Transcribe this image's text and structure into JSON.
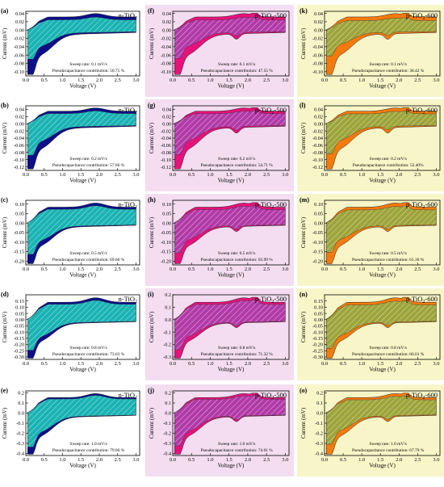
{
  "figure": {
    "x_label": "Voltage (V)",
    "y_label": "Current (mV)",
    "x_ticks": [
      "0.0",
      "0.5",
      "1.0",
      "1.5",
      "2.0",
      "2.5",
      "3.0"
    ],
    "columns": [
      {
        "title": "n-TiO2",
        "background": "#ffffff",
        "fill": "#0b0f8a",
        "pseudo_fill": "#1ab3b3"
      },
      {
        "title": "p-TiO2-500",
        "background": "#f4ddf1",
        "fill": "#e6127a",
        "pseudo_fill": "#b23aa8"
      },
      {
        "title": "p-TiO2-600",
        "background": "#f8f6c8",
        "fill": "#f57a0c",
        "pseudo_fill": "#9da43a"
      }
    ]
  },
  "chart_data": [
    {
      "type": "area",
      "panel": "(a)",
      "title": "n-TiO2",
      "xlabel": "Voltage (V)",
      "ylabel": "Current (mV)",
      "xlim": [
        0,
        3.1
      ],
      "ylim": [
        -0.11,
        0.045
      ],
      "y_ticks": [
        "-0.10",
        "-0.08",
        "-0.06",
        "-0.04",
        "-0.02",
        "0.00",
        "0.02",
        "0.04"
      ],
      "sweep_rate": "Sweep rate: 0.1 mV/s",
      "pseudocapacitance": "Pseudocapacitance contribution: 50.75 %",
      "pseudo_fraction": 0.5075
    },
    {
      "type": "area",
      "panel": "(f)",
      "title": "p-TiO2-500",
      "xlabel": "Voltage (V)",
      "ylabel": "Current (mV)",
      "xlim": [
        0,
        3.1
      ],
      "ylim": [
        -0.11,
        0.045
      ],
      "y_ticks": [
        "-0.10",
        "-0.08",
        "-0.06",
        "-0.04",
        "-0.02",
        "0.00",
        "0.02",
        "0.04"
      ],
      "sweep_rate": "Sweep rate: 0.1 mV/s",
      "pseudocapacitance": "Pseudocapacitance contribution: 47.55 %",
      "pseudo_fraction": 0.4755
    },
    {
      "type": "area",
      "panel": "(k)",
      "title": "p-TiO2-600",
      "xlabel": "Voltage (V)",
      "ylabel": "Current (mV)",
      "xlim": [
        0,
        3.1
      ],
      "ylim": [
        -0.11,
        0.045
      ],
      "y_ticks": [
        "-0.10",
        "-0.08",
        "-0.06",
        "-0.04",
        "-0.02",
        "0.00",
        "0.02",
        "0.04"
      ],
      "sweep_rate": "Sweep rate: 0.1 mV/s",
      "pseudocapacitance": "Pseudocapacitance contribution: 38.42 %",
      "pseudo_fraction": 0.3842
    },
    {
      "type": "area",
      "panel": "(b)",
      "title": "n-TiO2",
      "xlabel": "Voltage (V)",
      "ylabel": "Current (mV)",
      "xlim": [
        0,
        3.1
      ],
      "ylim": [
        -0.13,
        0.05
      ],
      "y_ticks": [
        "-0.12",
        "-0.10",
        "-0.08",
        "-0.06",
        "-0.04",
        "-0.02",
        "0.00",
        "0.02",
        "0.04"
      ],
      "sweep_rate": "Sweep rate: 0.2 mV/s",
      "pseudocapacitance": "Pseudocapacitance contribution: 57.66 %",
      "pseudo_fraction": 0.5766
    },
    {
      "type": "area",
      "panel": "(g)",
      "title": "p-TiO2-500",
      "xlabel": "Voltage (V)",
      "ylabel": "Current (mV)",
      "xlim": [
        0,
        3.1
      ],
      "ylim": [
        -0.13,
        0.05
      ],
      "y_ticks": [
        "-0.12",
        "-0.10",
        "-0.08",
        "-0.06",
        "-0.04",
        "-0.02",
        "0.00",
        "0.02",
        "0.04"
      ],
      "sweep_rate": "Sweep rate: 0.2 mV/s",
      "pseudocapacitance": "Pseudocapacitance contribution: 54.71 %",
      "pseudo_fraction": 0.5471
    },
    {
      "type": "area",
      "panel": "(l)",
      "title": "p-TiO2-600",
      "xlabel": "Voltage (V)",
      "ylabel": "Current (mV)",
      "xlim": [
        0,
        3.1
      ],
      "ylim": [
        -0.13,
        0.05
      ],
      "y_ticks": [
        "-0.12",
        "-0.10",
        "-0.08",
        "-0.06",
        "-0.04",
        "-0.02",
        "0.00",
        "0.02",
        "0.04"
      ],
      "sweep_rate": "Sweep rate: 0.2 mV/s",
      "pseudocapacitance": "Pseudocapacitance contribution: 52.40%",
      "pseudo_fraction": 0.524
    },
    {
      "type": "area",
      "panel": "(c)",
      "title": "n-TiO2",
      "xlabel": "Voltage (V)",
      "ylabel": "Current (mV)",
      "xlim": [
        0,
        3.1
      ],
      "ylim": [
        -0.22,
        0.12
      ],
      "y_ticks": [
        "-0.20",
        "-0.15",
        "-0.10",
        "-0.05",
        "0.00",
        "0.05",
        "0.10"
      ],
      "sweep_rate": "Sweep rate: 0.5 mV/s",
      "pseudocapacitance": "Pseudocapacitance contribution: 69.66 %",
      "pseudo_fraction": 0.6966
    },
    {
      "type": "area",
      "panel": "(h)",
      "title": "p-TiO2-500",
      "xlabel": "Voltage (V)",
      "ylabel": "Current (mV)",
      "xlim": [
        0,
        3.1
      ],
      "ylim": [
        -0.22,
        0.12
      ],
      "y_ticks": [
        "-0.20",
        "-0.15",
        "-0.10",
        "-0.05",
        "0.00",
        "0.05",
        "0.10"
      ],
      "sweep_rate": "Sweep rate: 0.5 mV/s",
      "pseudocapacitance": "Pseudocapacitance contribution: 63.99 %",
      "pseudo_fraction": 0.6399
    },
    {
      "type": "area",
      "panel": "(m)",
      "title": "p-TiO2-600",
      "xlabel": "Voltage (V)",
      "ylabel": "Current (mV)",
      "xlim": [
        0,
        3.1
      ],
      "ylim": [
        -0.22,
        0.12
      ],
      "y_ticks": [
        "-0.20",
        "-0.15",
        "-0.10",
        "-0.05",
        "0.00",
        "0.05",
        "0.10"
      ],
      "sweep_rate": "Sweep rate: 0.5 mV/s",
      "pseudocapacitance": "Pseudocapacitance contribution: 61.30 %",
      "pseudo_fraction": 0.613
    },
    {
      "type": "area",
      "panel": "(d)",
      "title": "n-TiO2",
      "xlabel": "Voltage (V)",
      "ylabel": "Current (mV)",
      "xlim": [
        0,
        3.1
      ],
      "ylim": [
        -0.32,
        0.2
      ],
      "y_ticks": [
        "-0.30",
        "-0.25",
        "-0.20",
        "-0.15",
        "-0.10",
        "-0.05",
        "0.00",
        "0.05",
        "0.10",
        "0.15"
      ],
      "sweep_rate": "Sweep rate: 0.8 mV/s",
      "pseudocapacitance": "Pseudocapacitance contribution: 73.63 %",
      "pseudo_fraction": 0.7363
    },
    {
      "type": "area",
      "panel": "(i)",
      "title": "p-TiO2-500",
      "xlabel": "Voltage (V)",
      "ylabel": "Current (mV)",
      "xlim": [
        0,
        3.1
      ],
      "ylim": [
        -0.32,
        0.2
      ],
      "y_ticks": [
        "-0.3",
        "-0.2",
        "-0.1",
        "0.0",
        "0.1",
        "0.2"
      ],
      "sweep_rate": "Sweep rate: 0.8 mV/s",
      "pseudocapacitance": "Pseudocapacitance contribution: 71.32 %",
      "pseudo_fraction": 0.7132
    },
    {
      "type": "area",
      "panel": "(n)",
      "title": "p-TiO2-600",
      "xlabel": "Voltage (V)",
      "ylabel": "Current (mV)",
      "xlim": [
        0,
        3.1
      ],
      "ylim": [
        -0.32,
        0.2
      ],
      "y_ticks": [
        "-0.30",
        "-0.25",
        "-0.20",
        "-0.15",
        "-0.10",
        "-0.05",
        "0.00",
        "0.05",
        "0.10",
        "0.15"
      ],
      "sweep_rate": "Sweep rate: 0.8 mV/s",
      "pseudocapacitance": "Pseudocapacitance contribution: 66.01 %",
      "pseudo_fraction": 0.6601
    },
    {
      "type": "area",
      "panel": "(e)",
      "title": "n-TiO2",
      "xlabel": "Voltage (V)",
      "ylabel": "Current (mV)",
      "xlim": [
        0,
        3.1
      ],
      "ylim": [
        -0.42,
        0.22
      ],
      "y_ticks": [
        "-0.4",
        "-0.3",
        "-0.2",
        "-0.1",
        "0.0",
        "0.1",
        "0.2"
      ],
      "sweep_rate": "Sweep rate: 1.0 mV/s",
      "pseudocapacitance": "Pseudocapacitance contribution: 79.06 %",
      "pseudo_fraction": 0.7906
    },
    {
      "type": "area",
      "panel": "(j)",
      "title": "p-TiO2-500",
      "xlabel": "Voltage (V)",
      "ylabel": "Current (mV)",
      "xlim": [
        0,
        3.1
      ],
      "ylim": [
        -0.42,
        0.22
      ],
      "y_ticks": [
        "-0.4",
        "-0.3",
        "-0.2",
        "-0.1",
        "0.0",
        "0.1",
        "0.2"
      ],
      "sweep_rate": "Sweep rate: 1.0 mV/s",
      "pseudocapacitance": "Pseudocapacitance contribution: 74.01 %",
      "pseudo_fraction": 0.7401
    },
    {
      "type": "area",
      "panel": "(o)",
      "title": "p-TiO2-600",
      "xlabel": "Voltage (V)",
      "ylabel": "Current (mV)",
      "xlim": [
        0,
        3.1
      ],
      "ylim": [
        -0.42,
        0.22
      ],
      "y_ticks": [
        "-0.4",
        "-0.3",
        "-0.2",
        "-0.1",
        "0.0",
        "0.1",
        "0.2"
      ],
      "sweep_rate": "Sweep rate: 1.0 mV/s",
      "pseudocapacitance": "Pseudocapacitance contribution: 67.79 %",
      "pseudo_fraction": 0.6779
    }
  ]
}
